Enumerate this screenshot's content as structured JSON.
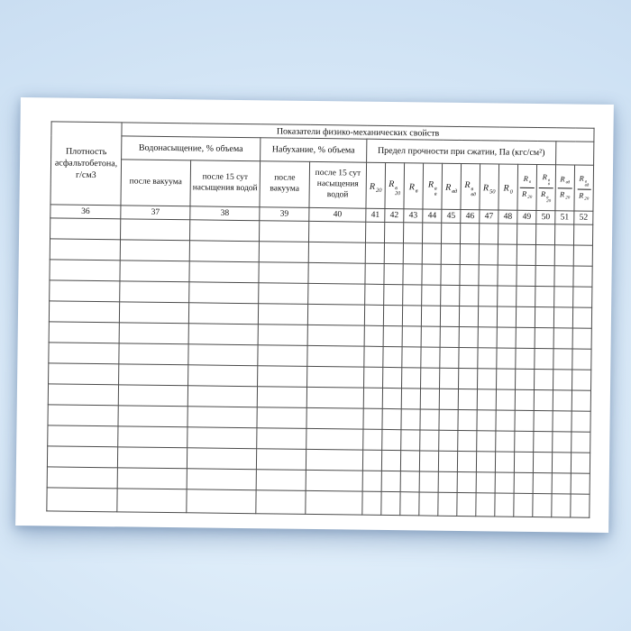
{
  "page": {
    "background_color": "#cfe2f4",
    "paper_color": "#ffffff",
    "border_color": "#4a4a4a"
  },
  "table": {
    "header": {
      "density_label": "Плотность асфальтобетона, г/см3",
      "top_title": "Показатели физико-механических свойств",
      "groups": [
        {
          "label": "Водонасыщение, % объема",
          "span": 2
        },
        {
          "label": "Набухание, % объема",
          "span": 2
        },
        {
          "label": "Предел прочности при сжатии, Па (кгс/см²)",
          "span": 10
        },
        {
          "label": "",
          "span": 2
        }
      ],
      "sub_headers": [
        "после вакуума",
        "после 15 сут насыщения водой",
        "после вакуума",
        "после 15 сут насыщения водой"
      ],
      "strength_symbols": [
        {
          "base": "R",
          "sub": "20"
        },
        {
          "base": "R",
          "sup": "в",
          "sub": "20"
        },
        {
          "base": "R",
          "sub": "в"
        },
        {
          "base": "R",
          "sup": "в",
          "sub": "в"
        },
        {
          "base": "R",
          "sub": "вд"
        },
        {
          "base": "R",
          "sup": "в",
          "sub": "вд"
        },
        {
          "base": "R",
          "sub": "50"
        },
        {
          "base": "R",
          "sub": "0"
        },
        {
          "frac": {
            "num": {
              "base": "R",
              "sub": "в"
            },
            "den": {
              "base": "R",
              "sub": "20"
            }
          }
        },
        {
          "frac": {
            "num": {
              "base": "R",
              "sup": "в",
              "sub": "в"
            },
            "den": {
              "base": "R",
              "sup": "в",
              "sub": "20"
            }
          }
        },
        {
          "frac": {
            "num": {
              "base": "R",
              "sub": "вд"
            },
            "den": {
              "base": "R",
              "sub": "20"
            }
          }
        },
        {
          "frac": {
            "num": {
              "base": "R",
              "sup": "в",
              "sub": "вд"
            },
            "den": {
              "base": "R",
              "sub": "20"
            }
          }
        }
      ],
      "column_numbers": [
        "36",
        "37",
        "38",
        "39",
        "40",
        "41",
        "42",
        "43",
        "44",
        "45",
        "46",
        "47",
        "48",
        "49",
        "50",
        "51",
        "52"
      ]
    },
    "body": {
      "empty_row_count": 14,
      "column_count": 17
    }
  }
}
